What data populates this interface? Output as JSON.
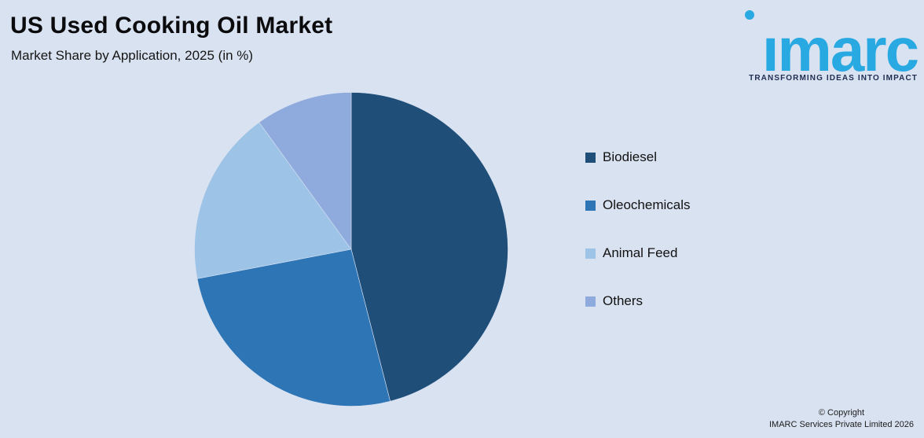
{
  "page": {
    "background": "#d9e2f1"
  },
  "header": {
    "title": "US Used Cooking Oil Market",
    "subtitle": "Market Share by Application, 2025 (in %)"
  },
  "logo": {
    "wordmark": "imarc",
    "tagline": "TRANSFORMING IDEAS INTO IMPACT",
    "brand_color": "#29a9e1",
    "tagline_color": "#1e2d50"
  },
  "chart_data": {
    "type": "pie",
    "title": "US Used Cooking Oil Market",
    "subtitle": "Market Share by Application, 2025 (in %)",
    "categories": [
      "Biodiesel",
      "Oleochemicals",
      "Animal Feed",
      "Others"
    ],
    "values": [
      46,
      26,
      18,
      10
    ],
    "colors": [
      "#1f4e79",
      "#2e75b6",
      "#9dc3e6",
      "#8faadc"
    ],
    "start_angle_deg": 0,
    "direction": "clockwise",
    "data_labels_visible": false,
    "legend_position": "right"
  },
  "legend": {
    "items": [
      {
        "label": "Biodiesel",
        "color": "#1f4e79"
      },
      {
        "label": "Oleochemicals",
        "color": "#2e75b6"
      },
      {
        "label": "Animal Feed",
        "color": "#9dc3e6"
      },
      {
        "label": "Others",
        "color": "#8faadc"
      }
    ]
  },
  "footer": {
    "line1": "© Copyright",
    "line2": "IMARC Services Private Limited 2026"
  }
}
